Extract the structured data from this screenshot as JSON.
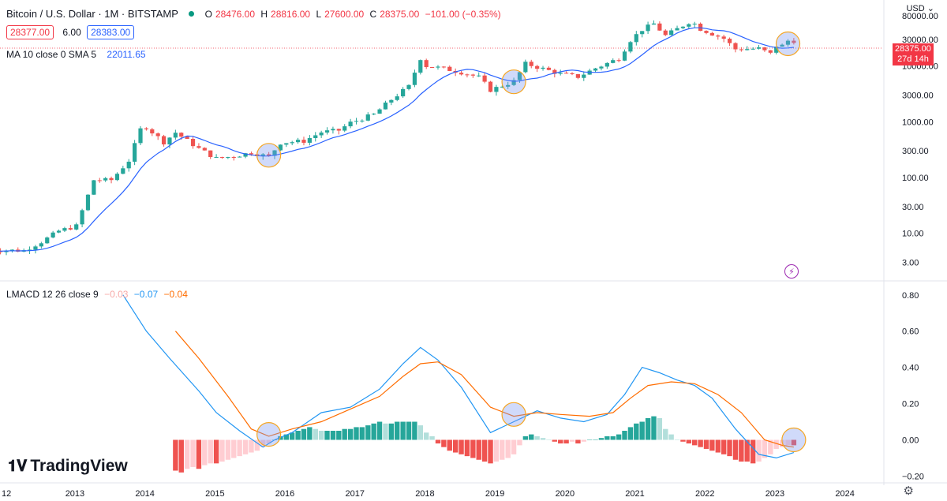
{
  "header": {
    "symbol": "Bitcoin / U.S. Dollar · 1M · BITSTAMP",
    "open_label": "O",
    "open": "28476.00",
    "high_label": "H",
    "high": "28816.00",
    "low_label": "L",
    "low": "27600.00",
    "close_label": "C",
    "close": "28375.00",
    "change": "−101.00 (−0.35%)",
    "bid": "28377.00",
    "spread": "6.00",
    "ask": "28383.00",
    "currency": "USD"
  },
  "ma_legend": {
    "label": "MA 10 close 0 SMA 5",
    "value": "22011.65"
  },
  "lmacd_legend": {
    "label": "LMACD 12 26 close 9",
    "hist": "−0.03",
    "macd": "−0.07",
    "signal": "−0.04"
  },
  "price_tag": {
    "price": "28375.00",
    "countdown": "27d 14h"
  },
  "brand": "TradingView",
  "colors": {
    "up": "#26a69a",
    "down": "#ef5350",
    "ma": "#2962ff",
    "macd": "#2196f3",
    "signal": "#ff6d00",
    "hist_up_strong": "#26a69a",
    "hist_up_weak": "#b2dfdb",
    "hist_down_strong": "#ef5350",
    "hist_down_weak": "#ffcdd2"
  },
  "chart_data": [
    {
      "type": "candlestick",
      "title": "Bitcoin / U.S. Dollar · 1M · BITSTAMP",
      "y_scale": "log",
      "ylim": [
        2,
        110000
      ],
      "y_ticks": [
        80000,
        30000,
        10000,
        3000,
        1000,
        300,
        100,
        30,
        10,
        3
      ],
      "y_tick_labels": [
        "80000.00",
        "30000.00",
        "10000.00",
        "3000.00",
        "1000.00",
        "300.00",
        "100.00",
        "30.00",
        "10.00",
        "3.00"
      ],
      "x_ticks": [
        "12",
        "2013",
        "2014",
        "2015",
        "2016",
        "2017",
        "2018",
        "2019",
        "2020",
        "2021",
        "2022",
        "2023",
        "2024"
      ],
      "x_tick_dates": [
        2012.0,
        2013.0,
        2014.0,
        2015.0,
        2016.0,
        2017.0,
        2018.0,
        2019.0,
        2020.0,
        2021.0,
        2022.0,
        2023.0,
        2024.0
      ],
      "monthly_close": [
        [
          2011.75,
          5.0
        ],
        [
          2012.25,
          4.9
        ],
        [
          2012.5,
          7
        ],
        [
          2012.75,
          11
        ],
        [
          2013.0,
          13.5
        ],
        [
          2013.25,
          90
        ],
        [
          2013.5,
          90
        ],
        [
          2013.75,
          200
        ],
        [
          2013.917,
          730
        ],
        [
          2014.0,
          800
        ],
        [
          2014.25,
          430
        ],
        [
          2014.417,
          640
        ],
        [
          2014.75,
          330
        ],
        [
          2015.0,
          220
        ],
        [
          2015.25,
          240
        ],
        [
          2015.5,
          280
        ],
        [
          2015.75,
          236
        ],
        [
          2015.917,
          420
        ],
        [
          2016.25,
          450
        ],
        [
          2016.5,
          650
        ],
        [
          2016.75,
          700
        ],
        [
          2016.917,
          960
        ],
        [
          2017.25,
          1350
        ],
        [
          2017.5,
          2500
        ],
        [
          2017.75,
          4300
        ],
        [
          2017.917,
          13800
        ],
        [
          2018.0,
          10000
        ],
        [
          2018.25,
          9000
        ],
        [
          2018.5,
          7700
        ],
        [
          2018.75,
          6300
        ],
        [
          2018.917,
          3700
        ],
        [
          2019.25,
          5300
        ],
        [
          2019.417,
          11000
        ],
        [
          2019.75,
          8300
        ],
        [
          2019.917,
          7200
        ],
        [
          2020.167,
          6400
        ],
        [
          2020.417,
          9100
        ],
        [
          2020.75,
          13700
        ],
        [
          2020.917,
          29000
        ],
        [
          2021.083,
          45000
        ],
        [
          2021.25,
          57000
        ],
        [
          2021.417,
          35000
        ],
        [
          2021.75,
          61000
        ],
        [
          2021.833,
          57000
        ],
        [
          2021.917,
          46000
        ],
        [
          2022.25,
          31000
        ],
        [
          2022.417,
          20000
        ],
        [
          2022.75,
          20500
        ],
        [
          2022.917,
          16500
        ],
        [
          2023.0,
          23100
        ],
        [
          2023.083,
          23100
        ],
        [
          2023.167,
          28400
        ],
        [
          2023.25,
          28375
        ]
      ],
      "series": [
        {
          "name": "MA 10 close 0 SMA 5"
        }
      ]
    },
    {
      "type": "line",
      "title": "LMACD 12 26 close 9",
      "ylim": [
        -0.22,
        0.86
      ],
      "y_ticks": [
        0.8,
        0.6,
        0.4,
        0.2,
        0.0,
        -0.2
      ],
      "y_tick_labels": [
        "0.80",
        "0.60",
        "0.40",
        "0.20",
        "0.00",
        "−0.20"
      ],
      "macd": [
        [
          2013.667,
          0.8
        ],
        [
          2014.0,
          0.6
        ],
        [
          2014.333,
          0.45
        ],
        [
          2014.75,
          0.27
        ],
        [
          2015.0,
          0.15
        ],
        [
          2015.333,
          0.05
        ],
        [
          2015.667,
          -0.04
        ],
        [
          2015.833,
          0.0
        ],
        [
          2016.083,
          0.04
        ],
        [
          2016.5,
          0.15
        ],
        [
          2016.917,
          0.18
        ],
        [
          2017.333,
          0.28
        ],
        [
          2017.667,
          0.42
        ],
        [
          2017.917,
          0.51
        ],
        [
          2018.167,
          0.44
        ],
        [
          2018.5,
          0.29
        ],
        [
          2018.917,
          0.04
        ],
        [
          2019.25,
          0.1
        ],
        [
          2019.583,
          0.16
        ],
        [
          2019.917,
          0.12
        ],
        [
          2020.25,
          0.1
        ],
        [
          2020.583,
          0.14
        ],
        [
          2020.833,
          0.25
        ],
        [
          2021.083,
          0.4
        ],
        [
          2021.333,
          0.37
        ],
        [
          2021.583,
          0.33
        ],
        [
          2021.833,
          0.3
        ],
        [
          2022.083,
          0.23
        ],
        [
          2022.417,
          0.06
        ],
        [
          2022.75,
          -0.08
        ],
        [
          2023.0,
          -0.1
        ],
        [
          2023.25,
          -0.07
        ]
      ],
      "signal": [
        [
          2014.417,
          0.6
        ],
        [
          2014.75,
          0.45
        ],
        [
          2015.167,
          0.24
        ],
        [
          2015.5,
          0.06
        ],
        [
          2015.75,
          0.02
        ],
        [
          2016.083,
          0.06
        ],
        [
          2016.5,
          0.1
        ],
        [
          2016.917,
          0.17
        ],
        [
          2017.333,
          0.24
        ],
        [
          2017.667,
          0.35
        ],
        [
          2017.917,
          0.42
        ],
        [
          2018.167,
          0.43
        ],
        [
          2018.5,
          0.36
        ],
        [
          2018.917,
          0.18
        ],
        [
          2019.25,
          0.13
        ],
        [
          2019.583,
          0.15
        ],
        [
          2019.917,
          0.14
        ],
        [
          2020.333,
          0.13
        ],
        [
          2020.667,
          0.15
        ],
        [
          2020.917,
          0.23
        ],
        [
          2021.167,
          0.3
        ],
        [
          2021.5,
          0.32
        ],
        [
          2021.833,
          0.31
        ],
        [
          2022.167,
          0.25
        ],
        [
          2022.5,
          0.15
        ],
        [
          2022.833,
          0.0
        ],
        [
          2023.083,
          -0.03
        ],
        [
          2023.25,
          -0.04
        ]
      ],
      "histogram": [
        [
          2014.417,
          -0.17
        ],
        [
          2014.5,
          -0.18
        ],
        [
          2014.583,
          -0.16
        ],
        [
          2014.667,
          -0.15
        ],
        [
          2014.75,
          -0.16
        ],
        [
          2014.833,
          -0.14
        ],
        [
          2014.917,
          -0.13
        ],
        [
          2015.0,
          -0.13
        ],
        [
          2015.083,
          -0.12
        ],
        [
          2015.167,
          -0.11
        ],
        [
          2015.25,
          -0.1
        ],
        [
          2015.333,
          -0.09
        ],
        [
          2015.417,
          -0.08
        ],
        [
          2015.5,
          -0.07
        ],
        [
          2015.583,
          -0.06
        ],
        [
          2015.667,
          -0.04
        ],
        [
          2015.75,
          -0.02
        ],
        [
          2015.833,
          0.0
        ],
        [
          2015.917,
          0.02
        ],
        [
          2016.0,
          0.03
        ],
        [
          2016.083,
          0.04
        ],
        [
          2016.167,
          0.05
        ],
        [
          2016.25,
          0.06
        ],
        [
          2016.333,
          0.07
        ],
        [
          2016.417,
          0.06
        ],
        [
          2016.5,
          0.05
        ],
        [
          2016.583,
          0.05
        ],
        [
          2016.667,
          0.05
        ],
        [
          2016.75,
          0.05
        ],
        [
          2016.833,
          0.06
        ],
        [
          2016.917,
          0.06
        ],
        [
          2017.0,
          0.07
        ],
        [
          2017.083,
          0.07
        ],
        [
          2017.167,
          0.08
        ],
        [
          2017.25,
          0.09
        ],
        [
          2017.333,
          0.1
        ],
        [
          2017.417,
          0.09
        ],
        [
          2017.5,
          0.09
        ],
        [
          2017.583,
          0.1
        ],
        [
          2017.667,
          0.1
        ],
        [
          2017.75,
          0.1
        ],
        [
          2017.833,
          0.1
        ],
        [
          2017.917,
          0.08
        ],
        [
          2018.0,
          0.04
        ],
        [
          2018.083,
          0.02
        ],
        [
          2018.167,
          -0.02
        ],
        [
          2018.25,
          -0.04
        ],
        [
          2018.333,
          -0.06
        ],
        [
          2018.417,
          -0.07
        ],
        [
          2018.5,
          -0.08
        ],
        [
          2018.583,
          -0.09
        ],
        [
          2018.667,
          -0.1
        ],
        [
          2018.75,
          -0.11
        ],
        [
          2018.833,
          -0.12
        ],
        [
          2018.917,
          -0.13
        ],
        [
          2019.0,
          -0.12
        ],
        [
          2019.083,
          -0.11
        ],
        [
          2019.167,
          -0.1
        ],
        [
          2019.25,
          -0.08
        ],
        [
          2019.333,
          -0.03
        ],
        [
          2019.417,
          0.02
        ],
        [
          2019.5,
          0.03
        ],
        [
          2019.583,
          0.02
        ],
        [
          2019.667,
          0.01
        ],
        [
          2019.75,
          0.0
        ],
        [
          2019.833,
          -0.01
        ],
        [
          2019.917,
          -0.02
        ],
        [
          2020.0,
          -0.02
        ],
        [
          2020.083,
          -0.01
        ],
        [
          2020.167,
          -0.02
        ],
        [
          2020.25,
          -0.01
        ],
        [
          2020.333,
          0.0
        ],
        [
          2020.417,
          0.0
        ],
        [
          2020.5,
          0.01
        ],
        [
          2020.583,
          0.02
        ],
        [
          2020.667,
          0.02
        ],
        [
          2020.75,
          0.03
        ],
        [
          2020.833,
          0.05
        ],
        [
          2020.917,
          0.07
        ],
        [
          2021.0,
          0.09
        ],
        [
          2021.083,
          0.1
        ],
        [
          2021.167,
          0.12
        ],
        [
          2021.25,
          0.13
        ],
        [
          2021.333,
          0.12
        ],
        [
          2021.417,
          0.06
        ],
        [
          2021.5,
          0.03
        ],
        [
          2021.583,
          0.0
        ],
        [
          2021.667,
          -0.01
        ],
        [
          2021.75,
          -0.02
        ],
        [
          2021.833,
          -0.03
        ],
        [
          2021.917,
          -0.04
        ],
        [
          2022.0,
          -0.05
        ],
        [
          2022.083,
          -0.06
        ],
        [
          2022.167,
          -0.07
        ],
        [
          2022.25,
          -0.08
        ],
        [
          2022.333,
          -0.09
        ],
        [
          2022.417,
          -0.11
        ],
        [
          2022.5,
          -0.12
        ],
        [
          2022.583,
          -0.12
        ],
        [
          2022.667,
          -0.13
        ],
        [
          2022.75,
          -0.12
        ],
        [
          2022.833,
          -0.1
        ],
        [
          2022.917,
          -0.08
        ],
        [
          2023.0,
          -0.05
        ],
        [
          2023.083,
          -0.04
        ],
        [
          2023.167,
          -0.03
        ],
        [
          2023.25,
          -0.03
        ]
      ]
    }
  ],
  "highlight_circles": [
    {
      "pane": "price",
      "date": 2015.75,
      "value": 250
    },
    {
      "pane": "price",
      "date": 2019.25,
      "value": 5200
    },
    {
      "pane": "price",
      "date": 2023.167,
      "value": 25000
    },
    {
      "pane": "macd",
      "date": 2015.75,
      "value": 0.03
    },
    {
      "pane": "macd",
      "date": 2019.25,
      "value": 0.14
    },
    {
      "pane": "macd",
      "date": 2023.25,
      "value": 0.0
    }
  ]
}
